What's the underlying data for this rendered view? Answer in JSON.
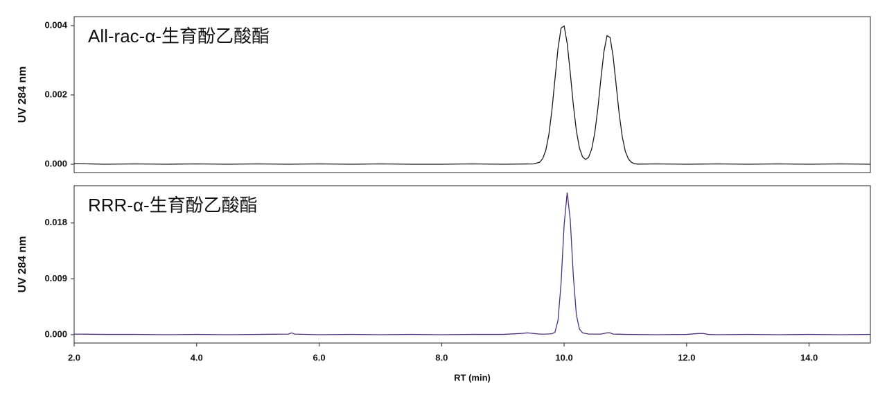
{
  "chart_data": [
    {
      "type": "line",
      "title": "All-rac-α-生育酚乙酸酯",
      "ylabel": "UV 284 nm",
      "color": "#1a1a1a",
      "xlim": [
        2.0,
        15.0
      ],
      "ylim": [
        -0.00024,
        0.00426
      ],
      "yticks": [
        {
          "value": 0,
          "label": "0.000"
        },
        {
          "value": 0.002,
          "label": "0.002"
        },
        {
          "value": 0.004,
          "label": "0.004"
        }
      ],
      "x": [
        2.0,
        2.5,
        3.0,
        3.5,
        4.0,
        4.5,
        5.0,
        5.5,
        6.0,
        6.5,
        7.0,
        7.5,
        8.0,
        8.5,
        9.0,
        9.5,
        9.6,
        9.65,
        9.7,
        9.75,
        9.8,
        9.85,
        9.9,
        9.95,
        10.0,
        10.05,
        10.1,
        10.15,
        10.2,
        10.25,
        10.3,
        10.35,
        10.4,
        10.45,
        10.5,
        10.55,
        10.6,
        10.65,
        10.7,
        10.75,
        10.8,
        10.85,
        10.9,
        10.95,
        11.0,
        11.05,
        11.1,
        11.15,
        11.2,
        11.5,
        12.0,
        12.5,
        13.0,
        13.5,
        14.0,
        14.5,
        15.0
      ],
      "values": [
        2e-05,
        0,
        1e-05,
        0,
        1e-05,
        0,
        1e-05,
        0,
        1e-05,
        0,
        1e-05,
        0,
        0,
        1e-05,
        0,
        1e-05,
        5.7e-05,
        0.000161,
        0.000397,
        0.000845,
        0.00155,
        0.00245,
        0.00334,
        0.00393,
        0.00399,
        0.00349,
        0.00264,
        0.00172,
        0.000965,
        0.000468,
        0.000215,
        0.000136,
        0.000202,
        0.00044,
        0.000899,
        0.0016,
        0.00246,
        0.00325,
        0.00371,
        0.00366,
        0.00311,
        0.00228,
        0.00144,
        0.000786,
        0.000368,
        0.00015,
        5.3e-05,
        1.6e-05,
        4e-06,
        1e-05,
        0,
        1e-05,
        0,
        1e-05,
        0,
        1e-05,
        0
      ]
    },
    {
      "type": "line",
      "title": "RRR-α-生育酚乙酸酯",
      "ylabel": "UV 284 nm",
      "xlabel": "RT (min)",
      "color": "#4b2f7f",
      "xlim": [
        2.0,
        15.0
      ],
      "xticks": [
        {
          "value": 2,
          "label": "2.0"
        },
        {
          "value": 4,
          "label": "4.0"
        },
        {
          "value": 6,
          "label": "6.0"
        },
        {
          "value": 8,
          "label": "8.0"
        },
        {
          "value": 10,
          "label": "10.0"
        },
        {
          "value": 12,
          "label": "12.0"
        },
        {
          "value": 14,
          "label": "14.0"
        }
      ],
      "ylim": [
        -0.00134,
        0.024
      ],
      "yticks": [
        {
          "value": 0,
          "label": "0.000"
        },
        {
          "value": 0.009,
          "label": "0.009"
        },
        {
          "value": 0.018,
          "label": "0.018"
        }
      ],
      "x": [
        2.0,
        2.5,
        3.0,
        3.5,
        4.0,
        4.5,
        5.0,
        5.5,
        5.55,
        5.6,
        6.0,
        6.5,
        7.0,
        7.5,
        8.0,
        8.5,
        9.0,
        9.3,
        9.4,
        9.5,
        9.6,
        9.7,
        9.8,
        9.85,
        9.9,
        9.95,
        10.0,
        10.05,
        10.1,
        10.15,
        10.2,
        10.25,
        10.3,
        10.4,
        10.6,
        10.7,
        10.75,
        10.8,
        11.0,
        11.5,
        12.0,
        12.2,
        12.27,
        12.35,
        12.5,
        13.0,
        13.5,
        14.0,
        14.5,
        15.0
      ],
      "values": [
        0.0001,
        5e-05,
        5e-05,
        0,
        5e-05,
        0,
        5e-05,
        0.0001,
        0.0003,
        0.0001,
        0,
        5e-05,
        0,
        5e-05,
        0,
        5e-05,
        5e-05,
        0.0002,
        0.0003,
        0.0002,
        0.0001,
        0.0001,
        0.00015,
        0.0004,
        0.0023,
        0.0083,
        0.0177,
        0.0229,
        0.0185,
        0.0095,
        0.0032,
        0.0009,
        0.0003,
        0.0001,
        0.0001,
        0.0003,
        0.0003,
        0.0001,
        5e-05,
        0,
        5e-05,
        0.0002,
        0.0002,
        5e-05,
        0,
        5e-05,
        0,
        5e-05,
        0,
        5e-05
      ]
    }
  ]
}
